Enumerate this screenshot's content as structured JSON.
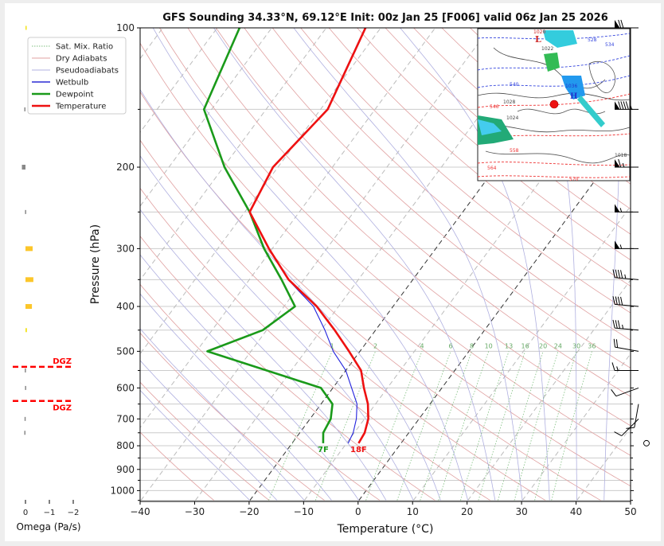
{
  "chart_data": {
    "type": "line",
    "subtype": "skew-T log-P sounding",
    "title": "GFS Sounding 34.33°N, 69.12°E Init: 00z Jan 25 [F006] valid 06z Jan 25 2026",
    "xlabel": "Temperature (°C)",
    "ylabel": "Pressure (hPa)",
    "xlim": [
      -40,
      50
    ],
    "ylim": [
      1050,
      100
    ],
    "x_ticks": [
      "−40",
      "−30",
      "−20",
      "−10",
      "0",
      "10",
      "20",
      "30",
      "40",
      "50"
    ],
    "x_tick_values": [
      -40,
      -30,
      -20,
      -10,
      0,
      10,
      20,
      30,
      40,
      50
    ],
    "y_ticks": [
      "100",
      "200",
      "300",
      "400",
      "500",
      "600",
      "700",
      "800",
      "900",
      "1000"
    ],
    "y_tick_values": [
      100,
      200,
      300,
      400,
      500,
      600,
      700,
      800,
      900,
      1000
    ],
    "pressure_gridlines": [
      150,
      250,
      350,
      450,
      550,
      650,
      750,
      850,
      950,
      1050
    ],
    "legend": {
      "position": "upper-left",
      "entries": [
        {
          "label": "Sat. Mix. Ratio",
          "color": "#7fbf7f",
          "style": "dotted"
        },
        {
          "label": "Dry Adiabats",
          "color": "#e0a0a0",
          "style": "solid-thin"
        },
        {
          "label": "Pseudoadiabats",
          "color": "#b0b0e0",
          "style": "solid-thin"
        },
        {
          "label": "Wetbulb",
          "color": "#0000cc",
          "style": "solid"
        },
        {
          "label": "Dewpoint",
          "color": "#1a9a1a",
          "style": "solid-thick"
        },
        {
          "label": "Temperature",
          "color": "#ee1111",
          "style": "solid-thick"
        }
      ]
    },
    "series": [
      {
        "name": "Temperature",
        "color": "#ee1111",
        "pressure": [
          790,
          750,
          700,
          650,
          600,
          550,
          500,
          450,
          400,
          350,
          300,
          250,
          200,
          150,
          100
        ],
        "values": [
          -7.8,
          -8.1,
          -9.3,
          -11.4,
          -14.3,
          -17.2,
          -22.0,
          -27.5,
          -34.0,
          -42.8,
          -50.6,
          -59.1,
          -60.9,
          -58.7,
          -62.8
        ]
      },
      {
        "name": "Dewpoint",
        "color": "#1a9a1a",
        "pressure": [
          790,
          750,
          700,
          650,
          600,
          500,
          450,
          400,
          350,
          300,
          250,
          200,
          150,
          100
        ],
        "values": [
          -14.3,
          -15.7,
          -16.2,
          -17.9,
          -22.2,
          -48.0,
          -40.7,
          -38.0,
          -44.1,
          -51.5,
          -59.1,
          -69.8,
          -81.4,
          -85.9
        ]
      },
      {
        "name": "Wetbulb",
        "color": "#2222dd",
        "pressure": [
          790,
          750,
          700,
          650,
          550,
          500,
          450,
          400,
          350,
          300,
          250,
          200,
          150,
          100
        ],
        "values": [
          -9.7,
          -10.2,
          -11.5,
          -13.4,
          -20.0,
          -24.9,
          -29.3,
          -34.6,
          -42.9,
          -50.7,
          -59.1,
          -60.9,
          -58.8,
          -62.9
        ]
      }
    ],
    "surface_labels": {
      "dewpoint": "7F",
      "temperature": "18F"
    },
    "mixing_ratio_labels": [
      "1",
      "2",
      "4",
      "6",
      "8",
      "10",
      "13",
      "16",
      "20",
      "24",
      "30",
      "36"
    ],
    "mixing_ratio_values": [
      1,
      2,
      4,
      6,
      8,
      10,
      13,
      16,
      20,
      24,
      30,
      36
    ],
    "highlight_isotherms": [
      0,
      -20
    ],
    "omega": {
      "xlabel": "Omega (Pa/s)",
      "x_ticks": [
        "0",
        "−1",
        "−2"
      ],
      "x_tick_values": [
        0,
        -1,
        -2
      ],
      "pressure": [
        100,
        150,
        200,
        250,
        300,
        350,
        400,
        450,
        550,
        600,
        700,
        750
      ],
      "values": [
        -0.05,
        0.05,
        0.15,
        0.02,
        -0.3,
        -0.33,
        -0.27,
        -0.06,
        0.03,
        0.02,
        0.04,
        0.05
      ],
      "dgz_label": "DGZ",
      "dgz_pressures": [
        540,
        640
      ]
    },
    "wind_barbs": {
      "pressure": [
        100,
        150,
        200,
        250,
        300,
        350,
        400,
        450,
        500,
        550,
        600,
        650,
        700,
        790
      ],
      "speed_kt": [
        70,
        95,
        65,
        55,
        55,
        45,
        40,
        35,
        20,
        15,
        10,
        10,
        10,
        0
      ],
      "direction_deg": [
        270,
        270,
        270,
        270,
        270,
        275,
        275,
        275,
        280,
        270,
        250,
        190,
        225,
        0
      ]
    }
  },
  "inset_map": {
    "labels": [
      "1020",
      "1022",
      "1036",
      "1024",
      "1028",
      "1018",
      "546",
      "540",
      "558",
      "564",
      "570",
      "528",
      "534",
      "L",
      "H"
    ]
  }
}
